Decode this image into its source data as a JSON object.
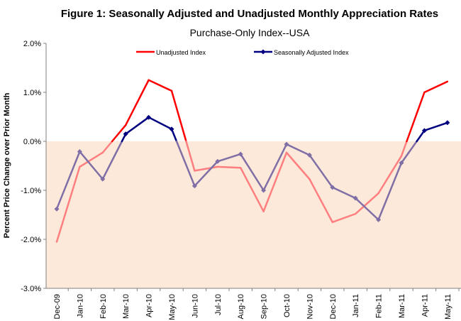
{
  "chart_data": {
    "type": "line",
    "title": "Figure 1: Seasonally Adjusted and Unadjusted Monthly Appreciation Rates",
    "subtitle": "Purchase-Only Index--USA",
    "ylabel": "Percent Price Change over Prior Month",
    "xlabel": "",
    "ylim": [
      -3.0,
      2.0
    ],
    "yticks": [
      2.0,
      1.0,
      0.0,
      -1.0,
      -2.0,
      -3.0
    ],
    "ytick_labels": [
      "2.0%",
      "1.0%",
      "0.0%",
      "-1.0%",
      "-2.0%",
      "-3.0%"
    ],
    "categories": [
      "Dec-09",
      "Jan-10",
      "Feb-10",
      "Mar-10",
      "Apr-10",
      "May-10",
      "Jun-10",
      "Jul-10",
      "Aug-10",
      "Sep-10",
      "Oct-10",
      "Nov-10",
      "Dec-10",
      "Jan-11",
      "Feb-11",
      "Mar-11",
      "Apr-11",
      "May-11"
    ],
    "shaded_region": {
      "from": -3.0,
      "to": 0.0,
      "color": "#fde9d9"
    },
    "grid": false,
    "legend_position": "top",
    "series": [
      {
        "name": "Unadjusted Index",
        "color": "#ff0000",
        "values": [
          -2.05,
          -0.52,
          -0.23,
          0.33,
          1.25,
          1.03,
          -0.6,
          -0.52,
          -0.54,
          -1.43,
          -0.23,
          -0.77,
          -1.65,
          -1.48,
          -1.06,
          -0.3,
          1.0,
          1.22
        ]
      },
      {
        "name": "Seasonally Adjusted Index",
        "color": "#000080",
        "marker": "diamond",
        "values": [
          -1.38,
          -0.21,
          -0.77,
          0.15,
          0.49,
          0.25,
          -0.91,
          -0.41,
          -0.26,
          -1.0,
          -0.06,
          -0.28,
          -0.94,
          -1.16,
          -1.6,
          -0.44,
          0.22,
          0.38
        ]
      }
    ]
  }
}
